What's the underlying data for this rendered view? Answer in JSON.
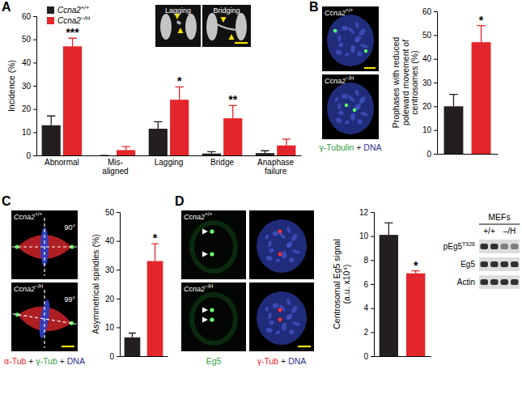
{
  "chart_data": [
    {
      "type": "bar",
      "title": "A",
      "y_label": "Incidence (%)",
      "categories": [
        "Abnormal",
        "Mis-\naligned",
        "Lagging",
        "Bridge",
        "Anaphase\nfailure"
      ],
      "series": [
        {
          "name": "Ccna2+/+",
          "color": "#231f20",
          "values": [
            13,
            0,
            11.5,
            0.8,
            1
          ],
          "errors": [
            4,
            0,
            3,
            0.8,
            1
          ]
        },
        {
          "name": "Ccna2−/H",
          "color": "#e3262b",
          "values": [
            47,
            2.3,
            24,
            16,
            4.3
          ],
          "errors": [
            3.5,
            1.5,
            5.5,
            5.5,
            2.7
          ],
          "significance": [
            "***",
            null,
            "*",
            "**",
            null
          ]
        }
      ],
      "ylim": [
        0,
        60
      ],
      "yticks": [
        0,
        10,
        20,
        30,
        40,
        50,
        60
      ],
      "legend": "upper left"
    },
    {
      "type": "bar",
      "title": "B",
      "y_label": "Prophases with reduced\npoleward movement of\ncentrosomes (%)",
      "categories": [
        null,
        null
      ],
      "values": [
        20,
        47
      ],
      "errors": [
        5,
        7
      ],
      "colors": [
        "#231f20",
        "#e3262b"
      ],
      "significance": [
        null,
        "*"
      ],
      "ylim": [
        0,
        60
      ],
      "yticks": [
        0,
        10,
        20,
        30,
        40,
        50,
        60
      ]
    },
    {
      "type": "bar",
      "title": "C",
      "y_label": "Asymmetrical spindles (%)",
      "categories": [
        null,
        null
      ],
      "values": [
        6.5,
        33
      ],
      "errors": [
        1.5,
        6
      ],
      "colors": [
        "#231f20",
        "#e3262b"
      ],
      "significance": [
        null,
        "*"
      ],
      "ylim": [
        0,
        50
      ],
      "yticks": [
        0,
        10,
        20,
        30,
        40,
        50
      ]
    },
    {
      "type": "bar",
      "title": "D",
      "y_label": "Centrosomal Eg5 signal\n(a.u. x10⁴)",
      "categories": [
        null,
        null
      ],
      "values": [
        10.1,
        6.9
      ],
      "errors": [
        1,
        0.2
      ],
      "colors": [
        "#231f20",
        "#e3262b"
      ],
      "significance": [
        null,
        "*"
      ],
      "ylim": [
        0,
        12
      ],
      "yticks": [
        0,
        2,
        4,
        6,
        8,
        10,
        12
      ]
    }
  ],
  "images": {
    "A": {
      "tiles": [
        {
          "label": "Lagging"
        },
        {
          "label": "Bridging"
        }
      ]
    },
    "B": {
      "tiles": [
        {
          "label": "Ccna2+/+"
        },
        {
          "label": "Ccna2−/H"
        }
      ],
      "caption": [
        {
          "text": "γ-Tubulin",
          "color": "#2ea043"
        },
        {
          "text": " + ",
          "color": "#231f20"
        },
        {
          "text": "DNA",
          "color": "#2e3192"
        }
      ]
    },
    "C": {
      "tiles": [
        {
          "label": "Ccna2+/+",
          "angle": "90°"
        },
        {
          "label": "Ccna2−/H",
          "angle": "99°"
        }
      ],
      "caption": [
        {
          "text": "α-Tub",
          "color": "#e3262b"
        },
        {
          "text": " + ",
          "color": "#231f20"
        },
        {
          "text": "γ-Tub",
          "color": "#2ea043"
        },
        {
          "text": " + ",
          "color": "#231f20"
        },
        {
          "text": "DNA",
          "color": "#2e3192"
        }
      ]
    },
    "D": {
      "tiles": [
        {
          "label": "Ccna2+/+"
        },
        {
          "label": "Ccna2−/H"
        }
      ],
      "captions": [
        [
          {
            "text": "Eg5",
            "color": "#2ea043"
          }
        ],
        [
          {
            "text": "γ-Tub",
            "color": "#e3262b"
          },
          {
            "text": " + ",
            "color": "#231f20"
          },
          {
            "text": "DNA",
            "color": "#2e3192"
          }
        ]
      ]
    }
  },
  "blot": {
    "title": "MEFs",
    "lanes": [
      "+/+",
      "–/H"
    ],
    "rows": [
      {
        "label": "pEg5",
        "superscript": "T926"
      },
      {
        "label": "Eg5"
      },
      {
        "label": "Actin"
      }
    ]
  }
}
